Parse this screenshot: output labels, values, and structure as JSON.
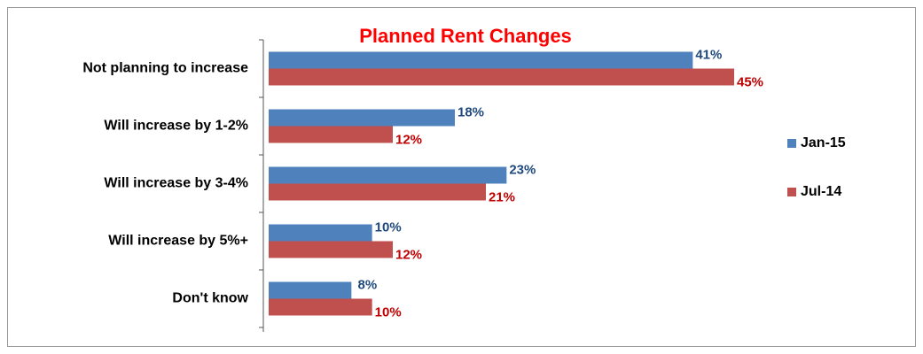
{
  "chart_data": {
    "type": "bar",
    "orientation": "horizontal",
    "title": "Planned Rent Changes",
    "categories": [
      "Not planning to increase",
      "Will increase by 1-2%",
      "Will increase by 3-4%",
      "Will increase by 5%+",
      "Don't know"
    ],
    "series": [
      {
        "name": "Jan-15",
        "color": "#4f81bd",
        "label_color": "#1f497d",
        "values": [
          41,
          18,
          23,
          10,
          8
        ],
        "value_labels": [
          "41%",
          "18%",
          "23%",
          "10%",
          "8%"
        ]
      },
      {
        "name": "Jul-14",
        "color": "#c0504d",
        "label_color": "#c00000",
        "values": [
          45,
          12,
          21,
          12,
          10
        ],
        "value_labels": [
          "45%",
          "12%",
          "21%",
          "12%",
          "10%"
        ]
      }
    ],
    "xlim": [
      0,
      60
    ],
    "legend": "right",
    "grid": false
  }
}
